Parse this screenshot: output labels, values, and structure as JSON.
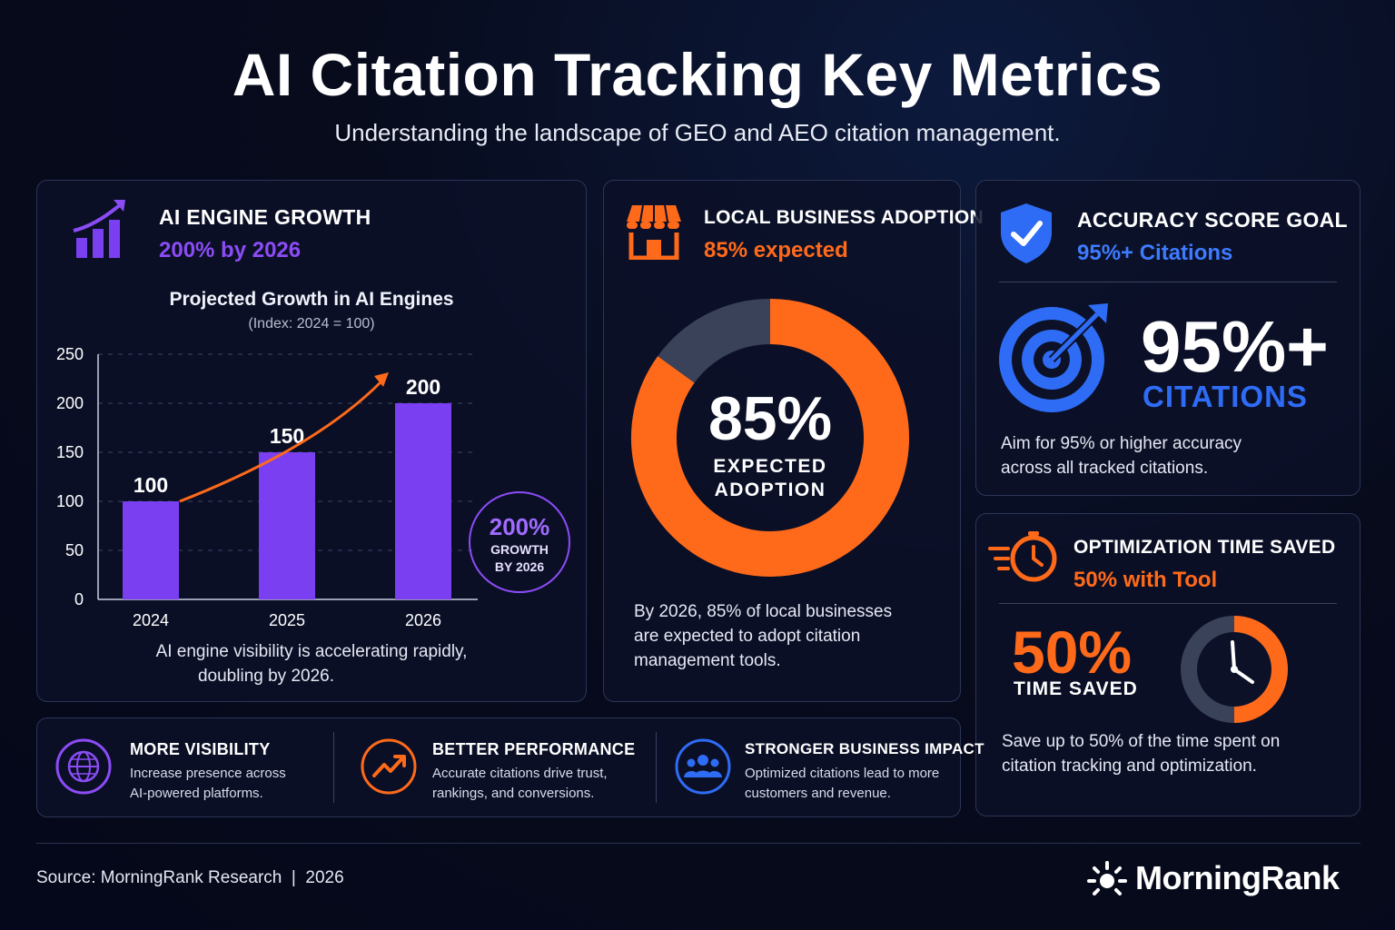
{
  "header": {
    "title": "AI Citation Tracking Key Metrics",
    "subtitle": "Understanding the landscape of GEO and AEO citation management."
  },
  "colors": {
    "purple": "#7b3ff2",
    "orange": "#ff6a1a",
    "blue": "#2f6cf5",
    "donut_remainder": "#3a4259"
  },
  "growth_card": {
    "icon": "growth-chart-icon",
    "title": "AI ENGINE GROWTH",
    "subtitle": "200% by 2026",
    "chart_title": "Projected Growth in AI Engines",
    "chart_note": "(Index: 2024 = 100)",
    "badge_value": "200%",
    "badge_line1": "GROWTH",
    "badge_line2": "BY 2026",
    "caption_line1": "AI engine visibility is accelerating rapidly,",
    "caption_line2": "doubling by 2026."
  },
  "adoption_card": {
    "icon": "storefront-icon",
    "title": "LOCAL BUSINESS ADOPTION",
    "subtitle": "85% expected",
    "donut_value": "85%",
    "donut_line1": "EXPECTED",
    "donut_line2": "ADOPTION",
    "caption_lines": [
      "By 2026, 85% of local businesses",
      "are expected to adopt citation",
      "management tools."
    ]
  },
  "accuracy_card": {
    "icon": "shield-check-icon",
    "title": "ACCURACY SCORE GOAL",
    "subtitle": "95%+ Citations",
    "target_icon": "target-icon",
    "big_value": "95%+",
    "big_label": "CITATIONS",
    "caption_lines": [
      "Aim for 95% or higher accuracy",
      "across all tracked citations."
    ]
  },
  "time_card": {
    "icon": "fast-clock-icon",
    "title": "OPTIMIZATION TIME SAVED",
    "subtitle": "50% with Tool",
    "big_value": "50%",
    "big_label": "TIME SAVED",
    "clock_fraction": 0.5,
    "caption_lines": [
      "Save up to 50% of the time spent on",
      "citation tracking and optimization."
    ]
  },
  "benefits": [
    {
      "icon": "globe-icon",
      "title": "MORE VISIBILITY",
      "lines": [
        "Increase presence across",
        "AI-powered platforms."
      ]
    },
    {
      "icon": "trend-up-icon",
      "title": "BETTER PERFORMANCE",
      "lines": [
        "Accurate citations drive trust,",
        "rankings, and conversions."
      ]
    },
    {
      "icon": "people-icon",
      "title": "STRONGER BUSINESS IMPACT",
      "lines": [
        "Optimized citations lead to more",
        "customers and revenue."
      ]
    }
  ],
  "footer": {
    "source": "Source: MorningRank Research  |  2026",
    "brand": "MorningRank",
    "brand_icon": "sunburst-logo-icon"
  },
  "chart_data": [
    {
      "type": "bar",
      "title": "Projected Growth in AI Engines",
      "subtitle": "(Index: 2024 = 100)",
      "categories": [
        "2024",
        "2025",
        "2026"
      ],
      "values": [
        100,
        150,
        200
      ],
      "data_labels": [
        "100",
        "150",
        "200"
      ],
      "yticks": [
        "0",
        "50",
        "100",
        "150",
        "200",
        "250"
      ],
      "ylim": [
        0,
        250
      ],
      "grid": true,
      "xlabel": "",
      "ylabel": ""
    },
    {
      "type": "pie",
      "style": "donut",
      "slices": [
        {
          "label": "Expected adoption",
          "value": 85
        },
        {
          "label": "Remainder",
          "value": 15
        }
      ]
    }
  ]
}
